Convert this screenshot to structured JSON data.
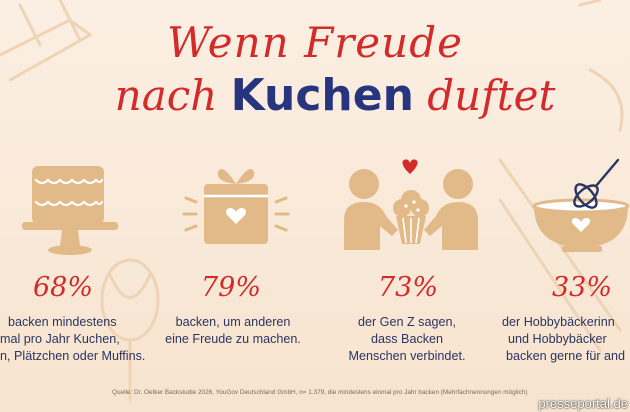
{
  "header": {
    "title_line1": "Wenn Freude",
    "title_line2_before": "nach",
    "title_line2_keyword": "Kuchen",
    "title_line2_after": "duftet"
  },
  "stats": [
    {
      "icon": "cake-icon",
      "percent": "68%",
      "lines": [
        "backen mindestens",
        "mal pro Jahr  Kuchen,",
        "n, Plätzchen oder Muffins."
      ]
    },
    {
      "icon": "gift-icon",
      "percent": "79%",
      "lines": [
        "backen, um anderen",
        "eine Freude zu machen."
      ]
    },
    {
      "icon": "people-cupcake-icon",
      "percent": "73%",
      "lines": [
        "der Gen Z sagen,",
        "dass Backen",
        "Menschen verbindet."
      ]
    },
    {
      "icon": "mixing-bowl-icon",
      "percent": "33%",
      "lines": [
        "der Hobbybäckerinn",
        "und Hobbybäcker",
        "backen gerne für and"
      ]
    }
  ],
  "footer": {
    "source": "Quelle: Dr. Oetker Backstudie 2026, YouGov Deutschland GmbH, n= 1.379, die mindestens einmal pro Jahr backen (Mehrfachnennungen möglich)",
    "watermark": "presseportal.de"
  },
  "colors": {
    "accent_red": "#d32a2a",
    "navy": "#27357e",
    "icon_tan": "#e2ba8a",
    "background": "#f8e8d6"
  }
}
